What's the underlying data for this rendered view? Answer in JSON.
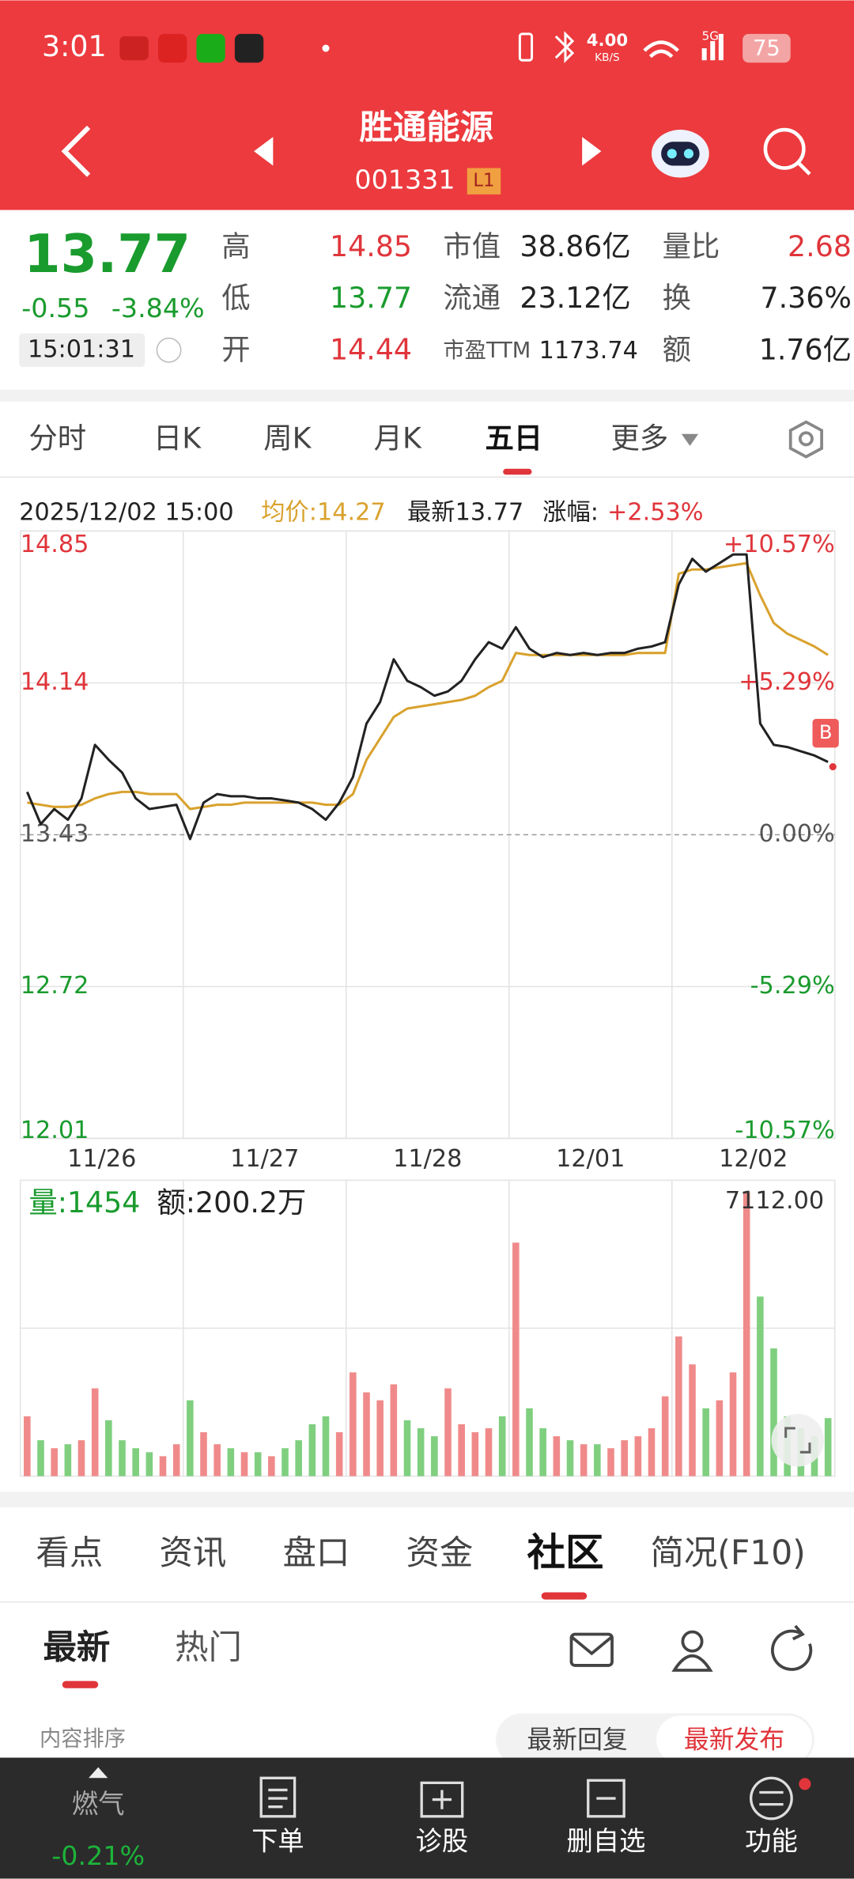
{
  "status": {
    "time": "3:01",
    "speed": "4.00",
    "speed_unit": "KB/S",
    "network": "5G",
    "battery": "75"
  },
  "header": {
    "name": "胜通能源",
    "code": "001331",
    "badge": "L1"
  },
  "quote": {
    "price": "13.77",
    "change": "-0.55",
    "pct": "-3.84%",
    "time": "15:01:31",
    "col1": [
      {
        "label": "高",
        "value": "14.85"
      },
      {
        "label": "低",
        "value": "13.77"
      },
      {
        "label": "开",
        "value": "14.44"
      }
    ],
    "col2": [
      {
        "label": "市值",
        "value": "38.86亿"
      },
      {
        "label": "流通",
        "value": "23.12亿"
      },
      {
        "label": "市盈TTM",
        "value": "1173.74"
      }
    ],
    "col3": [
      {
        "label": "量比",
        "value": "2.68"
      },
      {
        "label": "换",
        "value": "7.36%"
      },
      {
        "label": "额",
        "value": "1.76亿"
      }
    ]
  },
  "tabs": {
    "items": [
      "分时",
      "日K",
      "周K",
      "月K",
      "五日",
      "更多"
    ],
    "active": 4
  },
  "chart": {
    "info_time": "2025/12/02 15:00",
    "avg": "均价:14.27",
    "latest": "最新13.77",
    "pct_label": "涨幅:",
    "pct": "+2.53%",
    "ylim": [
      12.01,
      14.85
    ],
    "yticks": [
      14.85,
      14.14,
      13.43,
      12.72,
      12.01
    ],
    "pticks": [
      "+10.57%",
      "+5.29%",
      "0.00%",
      "-5.29%",
      "-10.57%"
    ],
    "dates": [
      "11/26",
      "11/27",
      "11/28",
      "12/01",
      "12/02"
    ],
    "marker": "B",
    "price": [
      13.63,
      13.48,
      13.55,
      13.5,
      13.6,
      13.85,
      13.78,
      13.72,
      13.6,
      13.55,
      13.56,
      13.57,
      13.41,
      13.58,
      13.62,
      13.61,
      13.61,
      13.6,
      13.6,
      13.59,
      13.58,
      13.55,
      13.5,
      13.58,
      13.7,
      13.95,
      14.05,
      14.25,
      14.15,
      14.12,
      14.08,
      14.1,
      14.15,
      14.25,
      14.33,
      14.3,
      14.4,
      14.3,
      14.26,
      14.28,
      14.27,
      14.28,
      14.27,
      14.28,
      14.28,
      14.3,
      14.31,
      14.33,
      14.6,
      14.72,
      14.66,
      14.7,
      14.74,
      14.74,
      13.95,
      13.85,
      13.84,
      13.82,
      13.8,
      13.77
    ],
    "average": [
      13.58,
      13.57,
      13.56,
      13.56,
      13.57,
      13.6,
      13.62,
      13.63,
      13.63,
      13.62,
      13.62,
      13.62,
      13.55,
      13.56,
      13.57,
      13.57,
      13.58,
      13.58,
      13.58,
      13.58,
      13.58,
      13.58,
      13.57,
      13.57,
      13.62,
      13.78,
      13.88,
      13.98,
      14.02,
      14.03,
      14.04,
      14.05,
      14.06,
      14.08,
      14.12,
      14.15,
      14.28,
      14.27,
      14.27,
      14.27,
      14.27,
      14.27,
      14.27,
      14.27,
      14.27,
      14.28,
      14.28,
      14.28,
      14.65,
      14.67,
      14.67,
      14.68,
      14.69,
      14.7,
      14.55,
      14.42,
      14.37,
      14.34,
      14.31,
      14.27
    ],
    "volume_label": "量:1454",
    "amount_label": "额:200.2万",
    "vmax": "7112.00",
    "vlim": [
      0,
      7112
    ],
    "volume": [
      1500,
      900,
      700,
      800,
      900,
      2200,
      1400,
      900,
      700,
      600,
      500,
      800,
      1900,
      1100,
      800,
      700,
      600,
      600,
      500,
      700,
      900,
      1300,
      1500,
      1100,
      2600,
      2100,
      1900,
      2300,
      1400,
      1200,
      1000,
      2200,
      1300,
      1100,
      1200,
      1500,
      5850,
      1700,
      1200,
      1000,
      900,
      800,
      800,
      700,
      900,
      1000,
      1200,
      2000,
      3500,
      2800,
      1700,
      1900,
      2600,
      7112,
      4500,
      3200,
      1500,
      1200,
      1000,
      1454
    ]
  },
  "info_tabs": {
    "items": [
      "看点",
      "资讯",
      "盘口",
      "资金",
      "社区",
      "简况(F10)"
    ],
    "active": 4
  },
  "feed": {
    "tabs": [
      "最新",
      "热门"
    ],
    "sort": "内容排序",
    "options": [
      "最新回复",
      "最新发布"
    ]
  },
  "nav": {
    "index_name": "燃气",
    "index_pct": "-0.21%",
    "items": [
      "下单",
      "诊股",
      "删自选",
      "功能"
    ]
  }
}
